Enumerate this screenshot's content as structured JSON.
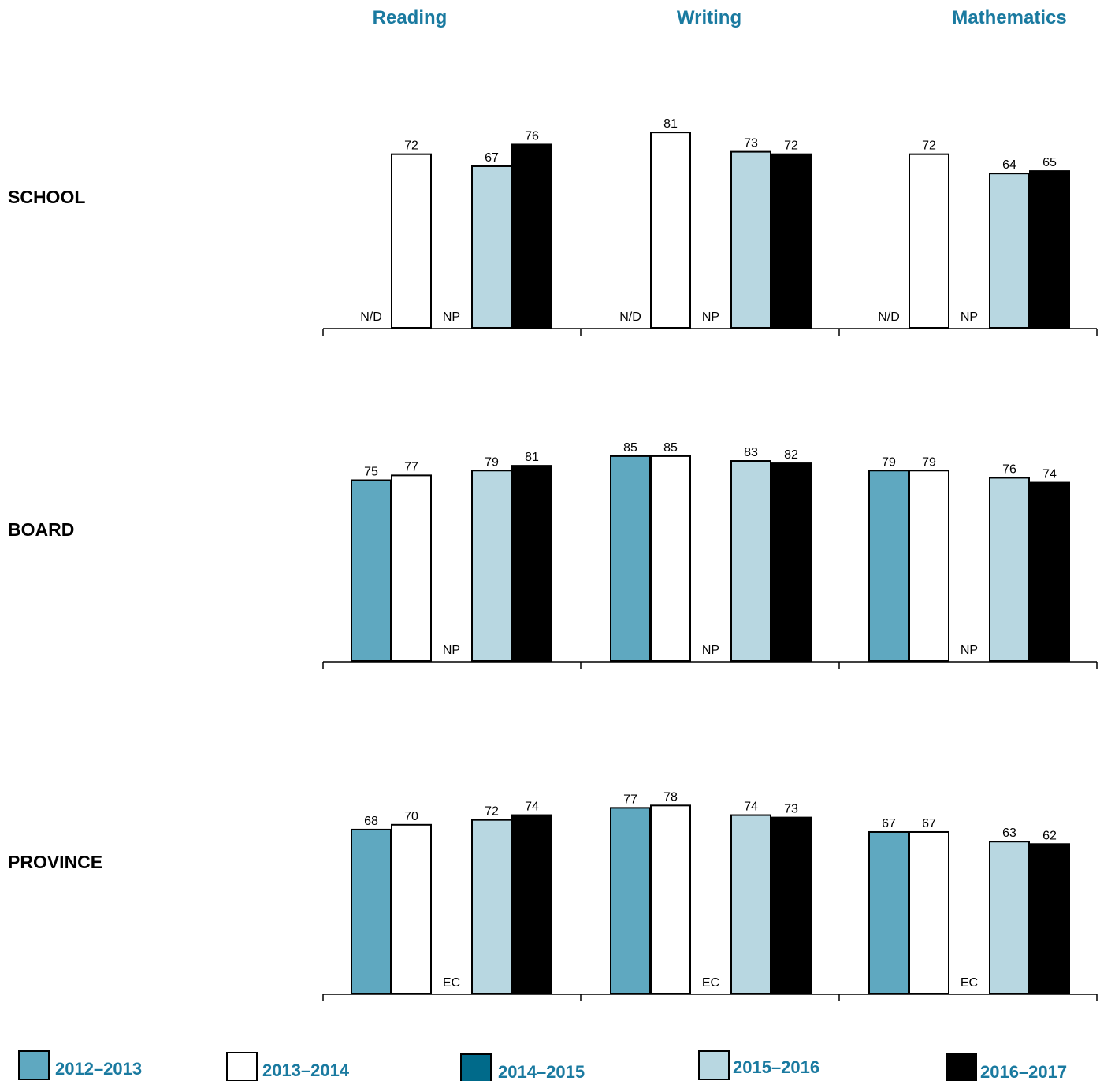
{
  "chart_data": {
    "type": "bar",
    "columns": [
      "Reading",
      "Writing",
      "Mathematics"
    ],
    "rows": [
      "SCHOOL",
      "BOARD",
      "PROVINCE"
    ],
    "series": [
      {
        "name": "2012–2013",
        "color": "#5fa8c0"
      },
      {
        "name": "2013–2014",
        "color": "#ffffff"
      },
      {
        "name": "2014–2015",
        "color": "#006a8a"
      },
      {
        "name": "2015–2016",
        "color": "#b8d7e1"
      },
      {
        "name": "2016–2017",
        "color": "#000000"
      }
    ],
    "ylim": [
      0,
      100
    ],
    "panels": [
      [
        {
          "values": [
            "N/D",
            72,
            "NP",
            67,
            76
          ]
        },
        {
          "values": [
            "N/D",
            81,
            "NP",
            73,
            72
          ]
        },
        {
          "values": [
            "N/D",
            72,
            "NP",
            64,
            65
          ]
        }
      ],
      [
        {
          "values": [
            75,
            77,
            "NP",
            79,
            81
          ]
        },
        {
          "values": [
            85,
            85,
            "NP",
            83,
            82
          ]
        },
        {
          "values": [
            79,
            79,
            "NP",
            76,
            74
          ]
        }
      ],
      [
        {
          "values": [
            68,
            70,
            "EC",
            72,
            74
          ]
        },
        {
          "values": [
            77,
            78,
            "EC",
            74,
            73
          ]
        },
        {
          "values": [
            67,
            67,
            "EC",
            63,
            62
          ]
        }
      ]
    ]
  }
}
